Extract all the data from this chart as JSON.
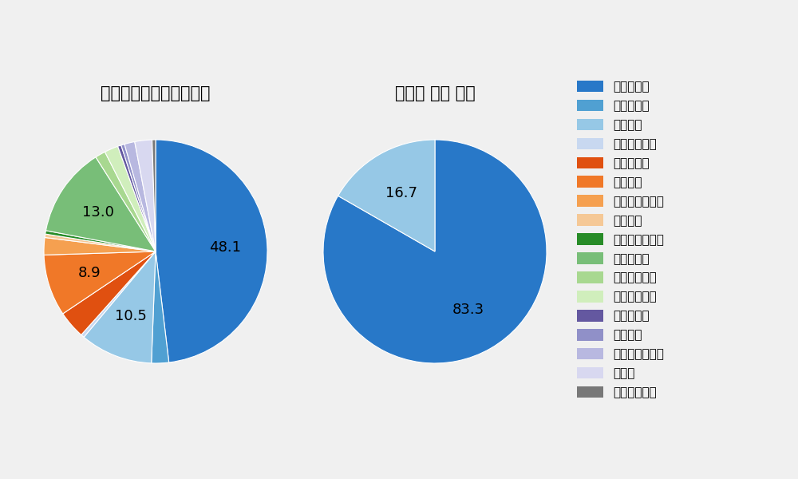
{
  "left_title": "セ・リーグ全プレイヤー",
  "right_title": "大瀬良 大地 選手",
  "legend_labels": [
    "ストレート",
    "ツーシーム",
    "シュート",
    "カットボール",
    "スプリット",
    "フォーク",
    "チェンジアップ",
    "シンカー",
    "高速スライダー",
    "スライダー",
    "縦スライダー",
    "パワーカーブ",
    "スクリュー",
    "ナックル",
    "ナックルカーブ",
    "カーブ",
    "スローカーブ"
  ],
  "colors": [
    "#2878c8",
    "#50a0d2",
    "#96c8e6",
    "#c8d8f0",
    "#e05010",
    "#f07828",
    "#f5a050",
    "#f5c896",
    "#288c28",
    "#78be78",
    "#a8d890",
    "#d0eebc",
    "#6458a0",
    "#9090c8",
    "#b8b8e0",
    "#d8d8f0",
    "#787878"
  ],
  "left_values": [
    48.1,
    2.5,
    10.5,
    0.5,
    4.0,
    8.9,
    2.5,
    0.5,
    0.5,
    13.0,
    1.5,
    2.0,
    0.5,
    0.5,
    1.5,
    2.5,
    0.5
  ],
  "left_labels": [
    "48.1",
    "",
    "10.5",
    "",
    "",
    "8.9",
    "",
    "",
    "",
    "13.0",
    "",
    "",
    "",
    "",
    "",
    "",
    ""
  ],
  "right_values": [
    83.3,
    0.0,
    16.7,
    0.0,
    0.0,
    0.0,
    0.0,
    0.0,
    0.0,
    0.0,
    0.0,
    0.0,
    0.0,
    0.0,
    0.0,
    0.0,
    0.0
  ],
  "right_labels": [
    "83.3",
    "",
    "16.7",
    "",
    "",
    "",
    "",
    "",
    "",
    "",
    "",
    "",
    "",
    "",
    "",
    "",
    ""
  ],
  "bg_color": "#f0f0f0",
  "label_fontsize": 13,
  "title_fontsize": 15,
  "legend_fontsize": 11
}
